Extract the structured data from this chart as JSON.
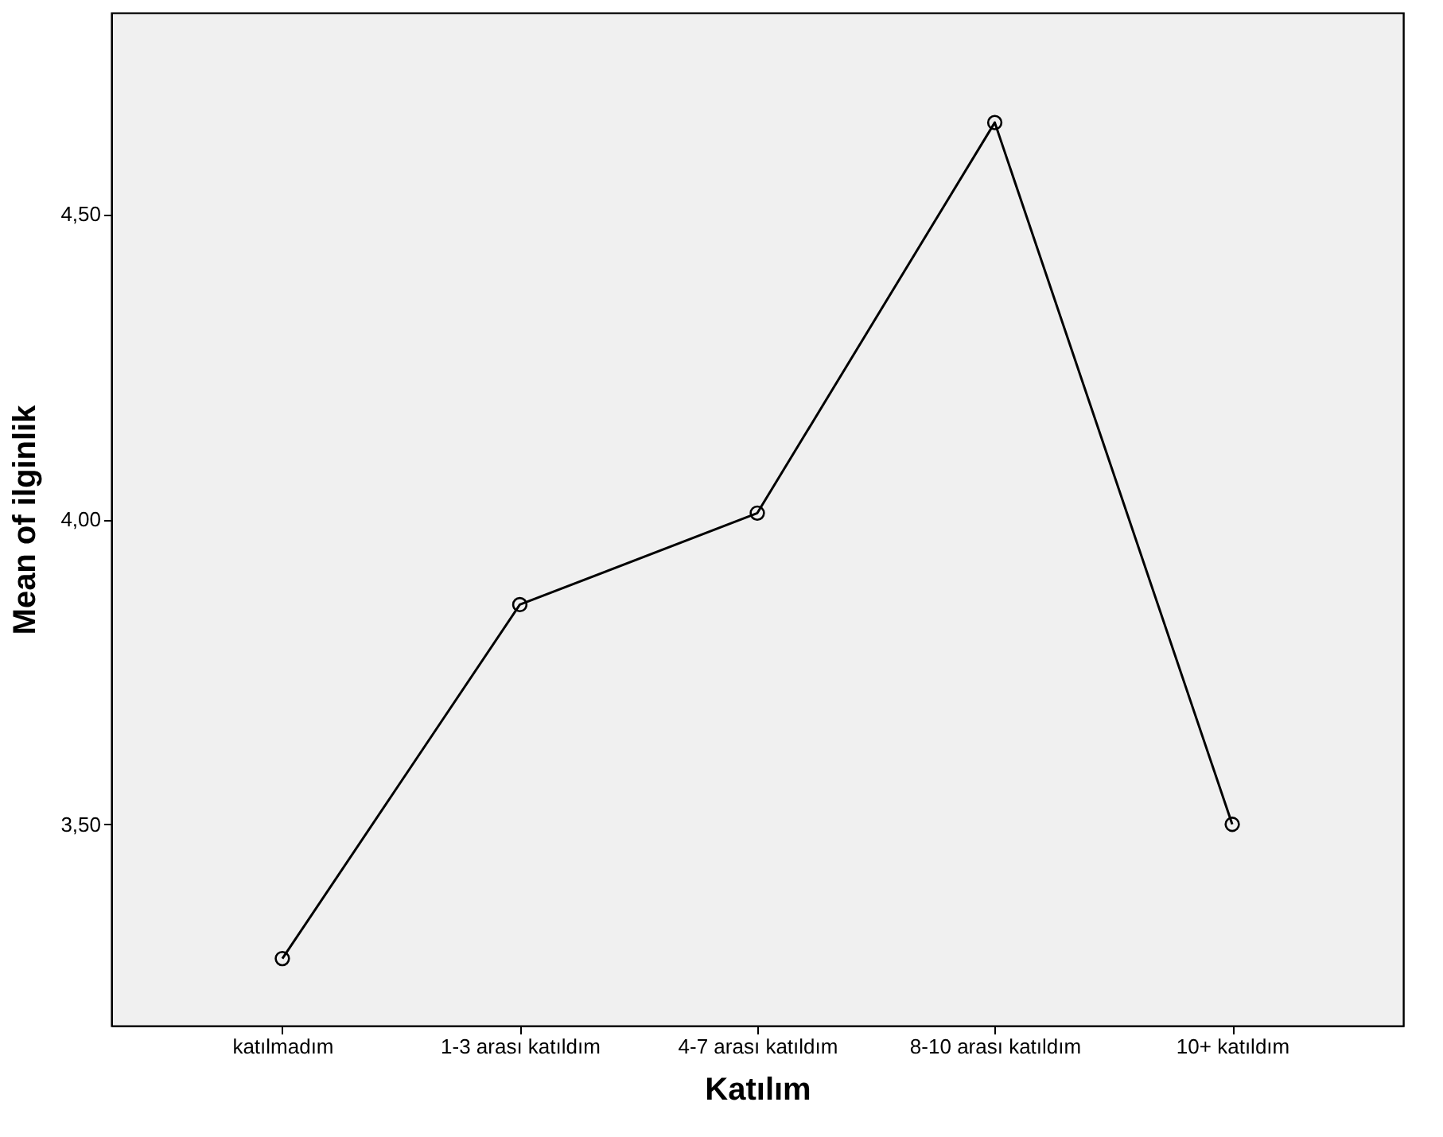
{
  "chart_data": {
    "type": "line",
    "xlabel": "Katılım",
    "ylabel": "Mean of ilginlik",
    "categories": [
      "katılmadım",
      "1-3 arası katıldım",
      "4-7 arası katıldım",
      "8-10 arası katıldım",
      "10+ katıldım"
    ],
    "series": [
      {
        "color": "#000000",
        "values": [
          3.28,
          3.86,
          4.01,
          4.65,
          3.5
        ]
      }
    ],
    "ylim": [
      3.17,
      4.83
    ],
    "yticks": [
      {
        "value": 3.5,
        "label": "3,50"
      },
      {
        "value": 4.0,
        "label": "4,00"
      },
      {
        "value": 4.5,
        "label": "4,50"
      }
    ],
    "grid": false,
    "marker": "circle",
    "line_style": "solid"
  }
}
